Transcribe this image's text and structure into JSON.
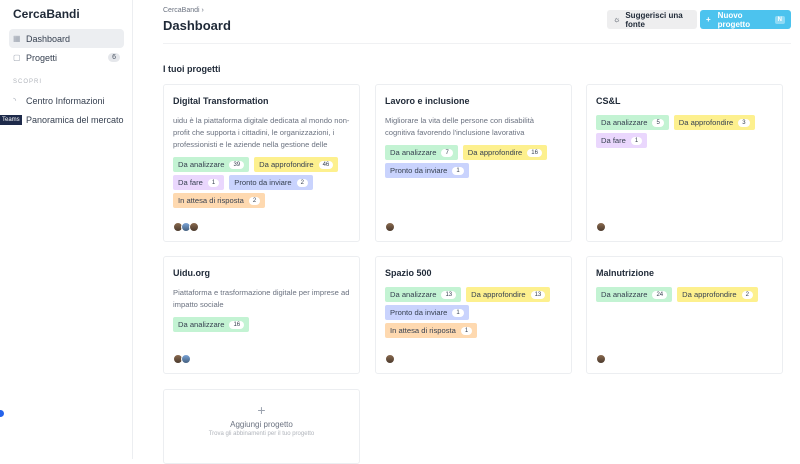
{
  "app": {
    "name": "CercaBandi"
  },
  "sidebar": {
    "items": [
      {
        "label": "Dashboard",
        "icon": "dashboard-icon"
      },
      {
        "label": "Progetti",
        "icon": "document-icon",
        "badge": "6"
      }
    ],
    "section": "SCOPRI",
    "discover": [
      {
        "label": "Centro Informazioni",
        "icon": "rss-icon"
      },
      {
        "label": "Panoramica del mercato",
        "icon": "chart-icon"
      }
    ],
    "teams_label": "Teams"
  },
  "header": {
    "breadcrumb": "CercaBandi",
    "title": "Dashboard",
    "suggest_label": "Suggerisci una fonte",
    "new_label": "Nuovo progetto",
    "new_shortcut": "N"
  },
  "section_title": "I tuoi progetti",
  "colors": {
    "Da analizzare": "#c3f3d3",
    "Da approfondire": "#fdf08e",
    "Da fare": "#ead7fd",
    "Pronto da inviare": "#c9d3fd",
    "In attesa di risposta": "#fed9b0"
  },
  "projects": [
    {
      "title": "Digital Transformation",
      "description": "uidu è la piattaforma digitale dedicata al mondo non-profit che supporta i cittadini, le organizzazioni, i professionisti e le aziende nella gestione delle attivit...",
      "tags": [
        {
          "label": "Da analizzare",
          "count": "39"
        },
        {
          "label": "Da approfondire",
          "count": "46"
        },
        {
          "label": "Da fare",
          "count": "1"
        },
        {
          "label": "Pronto da inviare",
          "count": "2"
        },
        {
          "label": "In attesa di risposta",
          "count": "2"
        }
      ],
      "avatars": 3
    },
    {
      "title": "Lavoro e inclusione",
      "description": "Migliorare la vita delle persone con disabilità cognitiva favorendo l'inclusione lavorativa",
      "tags": [
        {
          "label": "Da analizzare",
          "count": "7"
        },
        {
          "label": "Da approfondire",
          "count": "16"
        },
        {
          "label": "Pronto da inviare",
          "count": "1"
        }
      ],
      "avatars": 1
    },
    {
      "title": "CS&L",
      "description": "",
      "tags": [
        {
          "label": "Da analizzare",
          "count": "5"
        },
        {
          "label": "Da approfondire",
          "count": "3"
        },
        {
          "label": "Da fare",
          "count": "1"
        }
      ],
      "avatars": 1
    },
    {
      "title": "Uidu.org",
      "description": "Piattaforma e trasformazione digitale per imprese ad impatto sociale",
      "tags": [
        {
          "label": "Da analizzare",
          "count": "16"
        }
      ],
      "avatars": 2
    },
    {
      "title": "Spazio 500",
      "description": "",
      "tags": [
        {
          "label": "Da analizzare",
          "count": "13"
        },
        {
          "label": "Da approfondire",
          "count": "13"
        },
        {
          "label": "Pronto da inviare",
          "count": "1"
        },
        {
          "label": "In attesa di risposta",
          "count": "1"
        }
      ],
      "avatars": 1
    },
    {
      "title": "Malnutrizione",
      "description": "",
      "tags": [
        {
          "label": "Da analizzare",
          "count": "24"
        },
        {
          "label": "Da approfondire",
          "count": "2"
        }
      ],
      "avatars": 1
    }
  ],
  "add_project": {
    "title": "Aggiungi progetto",
    "subtitle": "Trova gli abbinamenti per il tuo progetto"
  }
}
